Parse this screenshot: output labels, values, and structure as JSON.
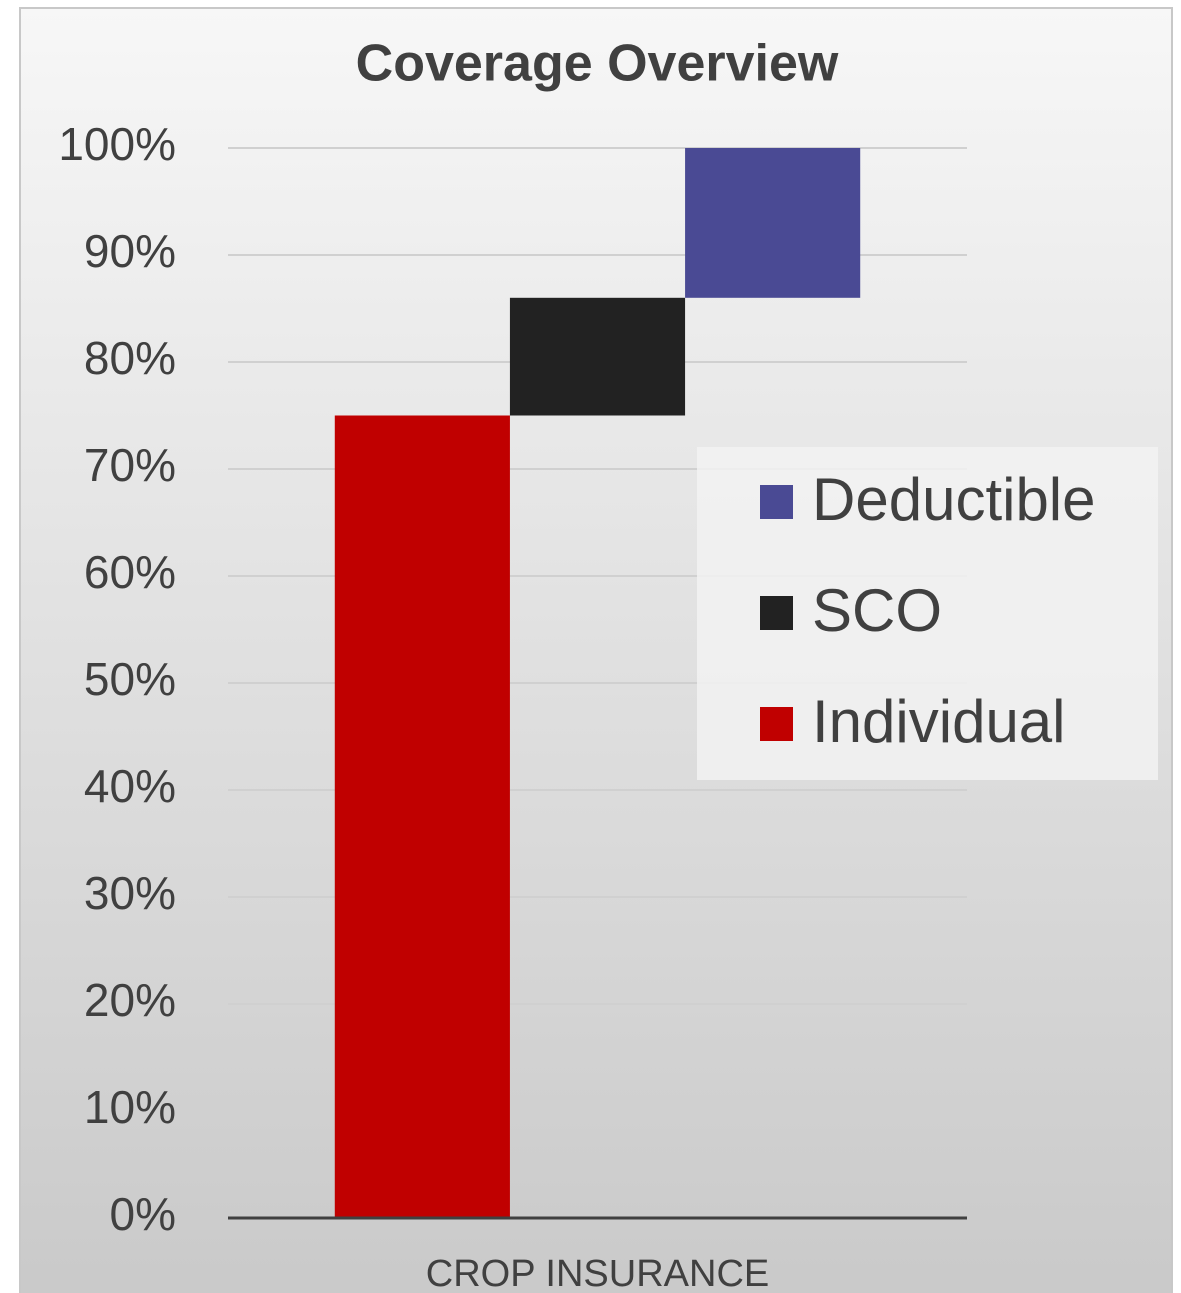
{
  "chart_data": {
    "type": "waterfall",
    "title": "Coverage Overview",
    "categories": [
      "CROP INSURANCE"
    ],
    "series": [
      {
        "name": "Individual",
        "color": "#c00000",
        "values": [
          75
        ]
      },
      {
        "name": "SCO",
        "color": "#222222",
        "values": [
          11
        ]
      },
      {
        "name": "Deductible",
        "color": "#4a4a94",
        "values": [
          14
        ]
      }
    ],
    "ylim": [
      0,
      100
    ],
    "yticks": [
      {
        "value": 0,
        "label": "0%"
      },
      {
        "value": 10,
        "label": "10%"
      },
      {
        "value": 20,
        "label": "20%"
      },
      {
        "value": 30,
        "label": "30%"
      },
      {
        "value": 40,
        "label": "40%"
      },
      {
        "value": 50,
        "label": "50%"
      },
      {
        "value": 60,
        "label": "60%"
      },
      {
        "value": 70,
        "label": "70%"
      },
      {
        "value": 80,
        "label": "80%"
      },
      {
        "value": 90,
        "label": "90%"
      },
      {
        "value": 100,
        "label": "100%"
      }
    ],
    "grid": true,
    "legend": "right"
  }
}
